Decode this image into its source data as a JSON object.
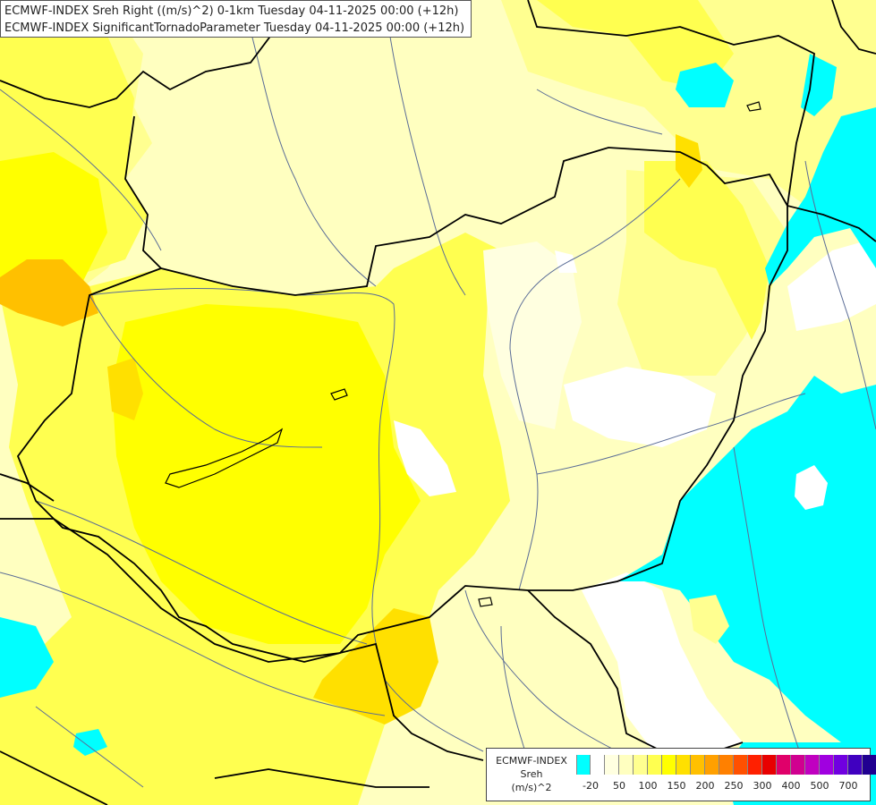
{
  "header": {
    "line1": "ECMWF-INDEX Sreh Right ((m/s)^2) 0-1km Tuesday 04-11-2025 00:00 (+12h)",
    "line2": "ECMWF-INDEX SignificantTornadoParameter Tuesday 04-11-2025 00:00 (+12h)"
  },
  "legend": {
    "title_line1": "ECMWF-INDEX",
    "title_line2": "Sreh",
    "title_line3": "(m/s)^2",
    "colors": [
      "#00ffff",
      "#ffffff",
      "#ffffe0",
      "#ffffc0",
      "#ffff90",
      "#ffff50",
      "#ffff00",
      "#ffe000",
      "#ffc000",
      "#ffa000",
      "#ff8000",
      "#ff5000",
      "#ff2000",
      "#e80000",
      "#e0006a",
      "#d00090",
      "#c000c0",
      "#a000e0",
      "#7000e0",
      "#4000c0",
      "#200090",
      "#000070"
    ],
    "ticks": [
      "-20",
      "50",
      "100",
      "150",
      "200",
      "250",
      "300",
      "400",
      "500",
      "700"
    ]
  },
  "map": {
    "region": "Central-Eastern Europe (Hungary and surroundings)",
    "field": "Storm-relative helicity 0-1 km",
    "dominant_colors": {
      "background": "#ffffc0",
      "yellow": "#ffff50",
      "strong_yellow": "#ffff00",
      "gold": "#ffe000",
      "orange": "#ffc000",
      "white": "#ffffff",
      "cyan": "#00ffff",
      "borders": "#000000",
      "rivers": "#5a6c96"
    }
  }
}
